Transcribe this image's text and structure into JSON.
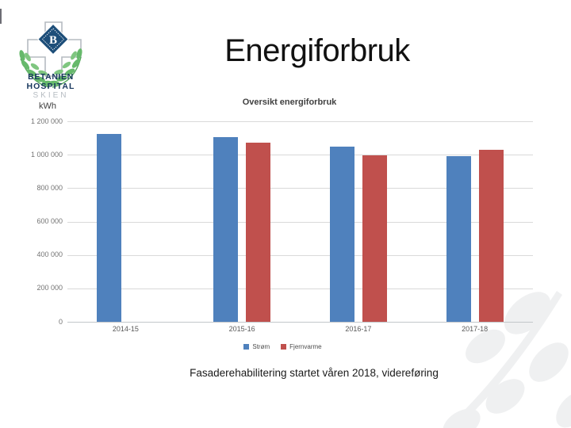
{
  "slide": {
    "title": "Energiforbruk",
    "caption": "Fasaderehabilitering startet våren 2018, videreføring"
  },
  "logo": {
    "monogram": "B",
    "line1": "BETANIEN",
    "line2": "HOSPITAL",
    "line3": "SKIEN",
    "colors": {
      "navy": "#17365d",
      "cross_gray": "#b5bbc1",
      "leaf_green": "#66b96b",
      "diamond_blue": "#1d4e79"
    }
  },
  "chart_data": {
    "type": "bar",
    "title": "Oversikt energiforbruk",
    "unit_label": "kWh",
    "categories": [
      "2014-15",
      "2015-16",
      "2016-17",
      "2017-18"
    ],
    "series": [
      {
        "name": "Strøm",
        "color": "#4F81BD",
        "values": [
          1125000,
          1105000,
          1050000,
          990000
        ]
      },
      {
        "name": "Fjernvarme",
        "color": "#C0504D",
        "values": [
          null,
          1070000,
          995000,
          1030000
        ]
      }
    ],
    "ylim": [
      0,
      1200000
    ],
    "ytick_labels": [
      "1 200 000",
      "1 000 000",
      "800 000",
      "600 000",
      "400 000",
      "200 000",
      "0"
    ],
    "grid": true,
    "legend_position": "bottom"
  }
}
